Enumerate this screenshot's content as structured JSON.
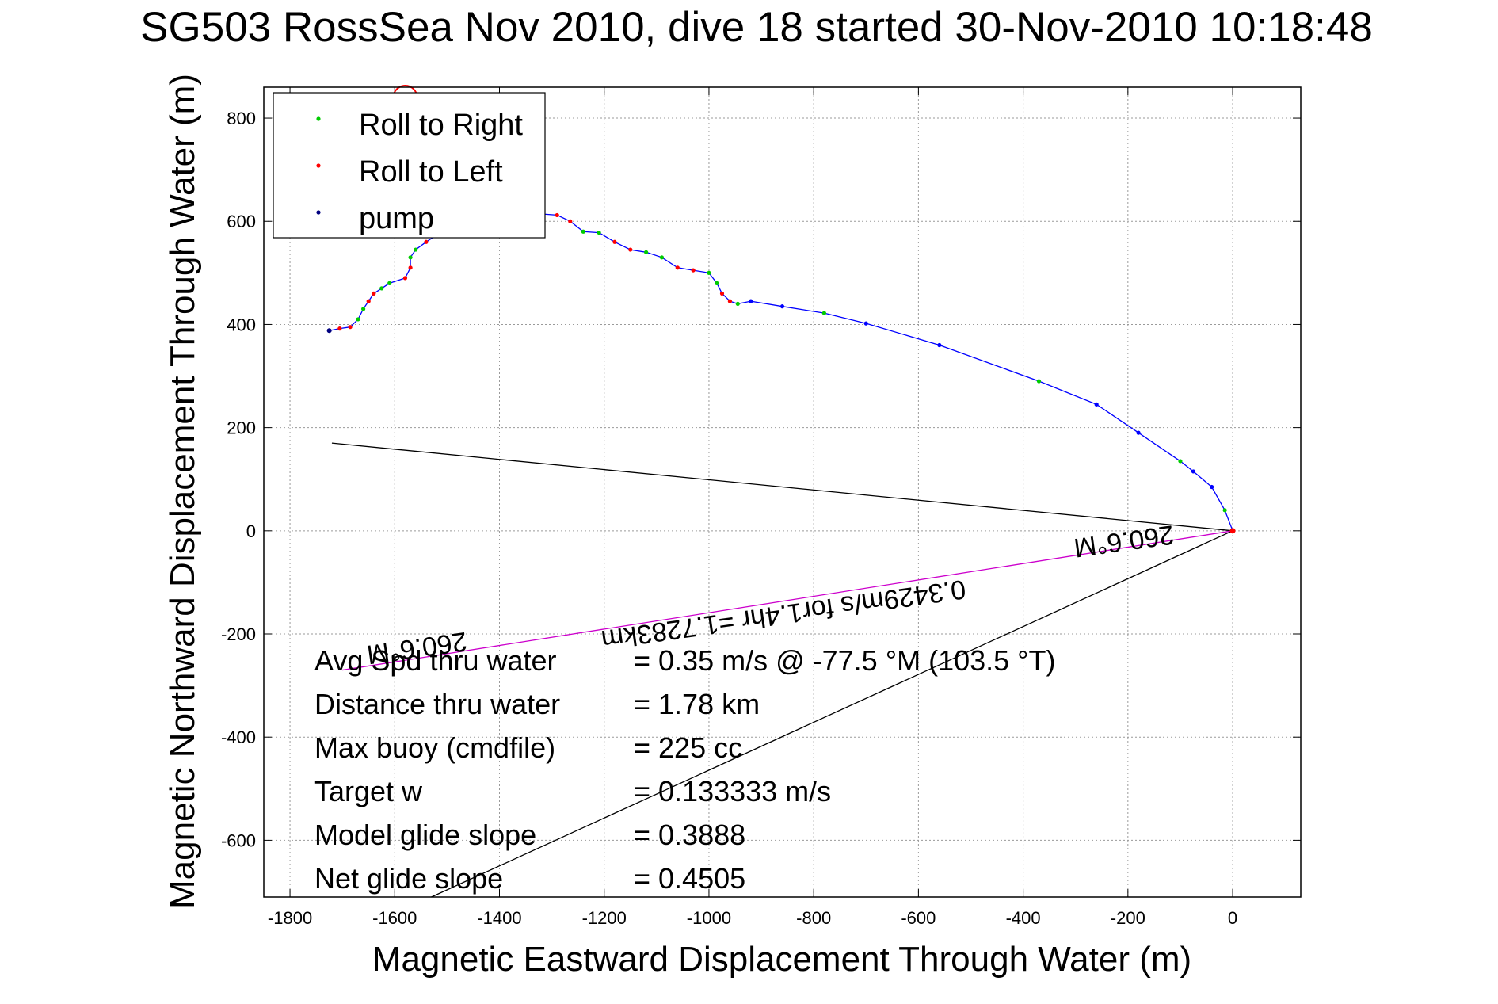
{
  "chart_data": {
    "type": "scatter",
    "title": "SG503 RossSea Nov 2010, dive 18 started 30-Nov-2010 10:18:48",
    "xlabel": "Magnetic Eastward Displacement Through Water (m)",
    "ylabel": "Magnetic Northward Displacement Through Water (m)",
    "xlim": [
      -1850,
      130
    ],
    "ylim": [
      -710,
      860
    ],
    "grid": true,
    "legend_position": "top-left",
    "x_ticks": [
      -1800,
      -1600,
      -1400,
      -1200,
      -1000,
      -800,
      -600,
      -400,
      -200,
      0
    ],
    "y_ticks": [
      -600,
      -400,
      -200,
      0,
      200,
      400,
      600,
      800
    ],
    "legend": [
      {
        "label": "Roll to Right",
        "color": "#00cc00"
      },
      {
        "label": "Roll to Left",
        "color": "#ff0000"
      },
      {
        "label": "pump",
        "color": "#000080"
      }
    ],
    "track": {
      "color": "#0000ff",
      "points": [
        [
          0,
          0
        ],
        [
          -15,
          40
        ],
        [
          -40,
          85
        ],
        [
          -75,
          115
        ],
        [
          -100,
          135
        ],
        [
          -180,
          190
        ],
        [
          -260,
          245
        ],
        [
          -370,
          290
        ],
        [
          -560,
          360
        ],
        [
          -700,
          402
        ],
        [
          -780,
          422
        ],
        [
          -860,
          435
        ],
        [
          -920,
          445
        ],
        [
          -945,
          440
        ],
        [
          -960,
          445
        ],
        [
          -975,
          460
        ],
        [
          -985,
          480
        ],
        [
          -1000,
          500
        ],
        [
          -1030,
          505
        ],
        [
          -1060,
          510
        ],
        [
          -1090,
          530
        ],
        [
          -1120,
          540
        ],
        [
          -1150,
          545
        ],
        [
          -1180,
          560
        ],
        [
          -1210,
          578
        ],
        [
          -1240,
          580
        ],
        [
          -1265,
          600
        ],
        [
          -1290,
          612
        ],
        [
          -1330,
          615
        ],
        [
          -1360,
          615
        ],
        [
          -1390,
          620
        ],
        [
          -1420,
          620
        ],
        [
          -1450,
          615
        ],
        [
          -1480,
          600
        ],
        [
          -1510,
          580
        ],
        [
          -1540,
          560
        ],
        [
          -1560,
          545
        ],
        [
          -1570,
          530
        ],
        [
          -1570,
          510
        ],
        [
          -1580,
          490
        ],
        [
          -1610,
          480
        ],
        [
          -1625,
          470
        ],
        [
          -1640,
          460
        ],
        [
          -1650,
          445
        ],
        [
          -1660,
          430
        ],
        [
          -1670,
          410
        ],
        [
          -1685,
          395
        ],
        [
          -1705,
          392
        ],
        [
          -1725,
          388
        ]
      ],
      "loop": {
        "x": -1580,
        "y": 840,
        "r": 15
      }
    },
    "lines": [
      {
        "name": "heading line",
        "color": "#000000",
        "from": [
          0,
          0
        ],
        "to": [
          -1720,
          170
        ]
      },
      {
        "name": "current line",
        "color": "#000000",
        "from": [
          0,
          0
        ],
        "to": [
          -1530,
          -710
        ]
      },
      {
        "name": "drift line",
        "color": "#cc00cc",
        "from": [
          0,
          0
        ],
        "to": [
          -1700,
          -270
        ]
      }
    ],
    "annotations": [
      {
        "text": "0.3429m/s for1.4hr =1.7283km",
        "x": -860,
        "y": -145,
        "rotate": 172
      },
      {
        "text": "260.6°M",
        "x": -210,
        "y": -3,
        "rotate": 172
      },
      {
        "text": "260.6°M",
        "x": -1560,
        "y": -210,
        "rotate": 172
      }
    ],
    "stats": [
      {
        "label": "Avg Spd thru water",
        "value": "=  0.35 m/s @ -77.5 °M (103.5 °T)"
      },
      {
        "label": "Distance thru water",
        "value": "=  1.78 km"
      },
      {
        "label": "Max buoy (cmdfile)",
        "value": "= 225 cc"
      },
      {
        "label": "Target w",
        "value": "= 0.133333 m/s"
      },
      {
        "label": "Model glide slope",
        "value": "= 0.3888"
      },
      {
        "label": "Net glide slope",
        "value": "= 0.4505"
      }
    ]
  }
}
